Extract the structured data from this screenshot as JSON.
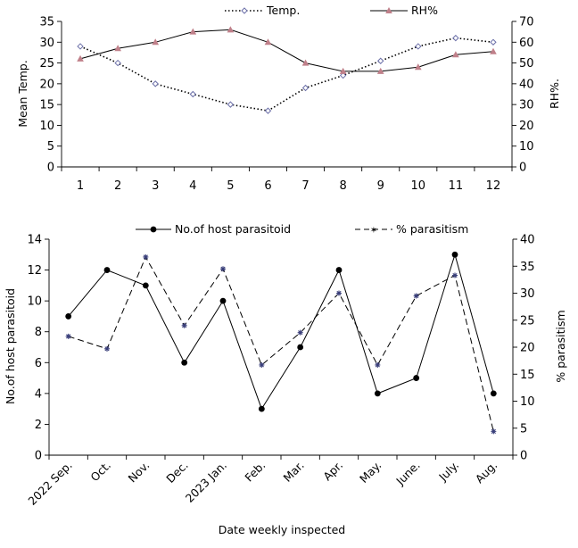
{
  "chart_data": [
    {
      "type": "line",
      "x": [
        1,
        2,
        3,
        4,
        5,
        6,
        7,
        8,
        9,
        10,
        11,
        12
      ],
      "xticks": [
        "1",
        "2",
        "3",
        "4",
        "5",
        "6",
        "7",
        "8",
        "9",
        "10",
        "11",
        "12"
      ],
      "ylabel": "Mean Temp.",
      "y2label": "RH%.",
      "ylim": [
        0,
        35
      ],
      "y2lim": [
        0,
        70
      ],
      "yticks": [
        "0",
        "5",
        "10",
        "15",
        "20",
        "25",
        "30",
        "35"
      ],
      "y2ticks": [
        "0",
        "10",
        "20",
        "30",
        "40",
        "50",
        "60",
        "70"
      ],
      "grid": false,
      "legend_placement": "top-center",
      "series": [
        {
          "name": "Temp.",
          "axis": "left",
          "style": "dotted",
          "marker": "diamond",
          "color": "#000000",
          "marker_color": "#6b6fa8",
          "values": [
            29,
            25,
            20,
            17.5,
            15,
            13.5,
            19,
            22,
            25.5,
            29,
            31,
            30
          ]
        },
        {
          "name": "RH%",
          "axis": "right",
          "style": "solid",
          "marker": "triangle",
          "color": "#000000",
          "marker_color": "#c0808a",
          "values": [
            52,
            57,
            60,
            65,
            66,
            60,
            50,
            46,
            46,
            48,
            54,
            55.5
          ]
        }
      ]
    },
    {
      "type": "line",
      "categories": [
        "2022 Sep.",
        "Oct.",
        "Nov.",
        "Dec.",
        "2023 Jan.",
        "Feb.",
        "Mar.",
        "Apr.",
        "May.",
        "June.",
        "July.",
        "Aug."
      ],
      "ylabel": "No.of host parasitoid",
      "y2label": "% parasitism",
      "xlabel": "Date weekly inspected",
      "ylim": [
        0,
        14
      ],
      "y2lim": [
        0,
        40
      ],
      "yticks": [
        "0",
        "2",
        "4",
        "6",
        "8",
        "10",
        "12",
        "14"
      ],
      "y2ticks": [
        "0",
        "5",
        "10",
        "15",
        "20",
        "25",
        "30",
        "35",
        "40"
      ],
      "grid": false,
      "legend_placement": "top-center",
      "series": [
        {
          "name": "No.of host parasitoid",
          "axis": "left",
          "style": "solid",
          "marker": "circle",
          "color": "#000000",
          "values": [
            9,
            12,
            11,
            6,
            10,
            3,
            7,
            12,
            4,
            5,
            13,
            4
          ]
        },
        {
          "name": "% parasitism",
          "axis": "right",
          "style": "dashed",
          "marker": "star",
          "color": "#000000",
          "marker_color": "#3a3f7a",
          "values": [
            22,
            19.7,
            36.7,
            24,
            34.5,
            16.7,
            22.7,
            30,
            16.7,
            29.5,
            33.3,
            4.4
          ]
        }
      ]
    }
  ]
}
